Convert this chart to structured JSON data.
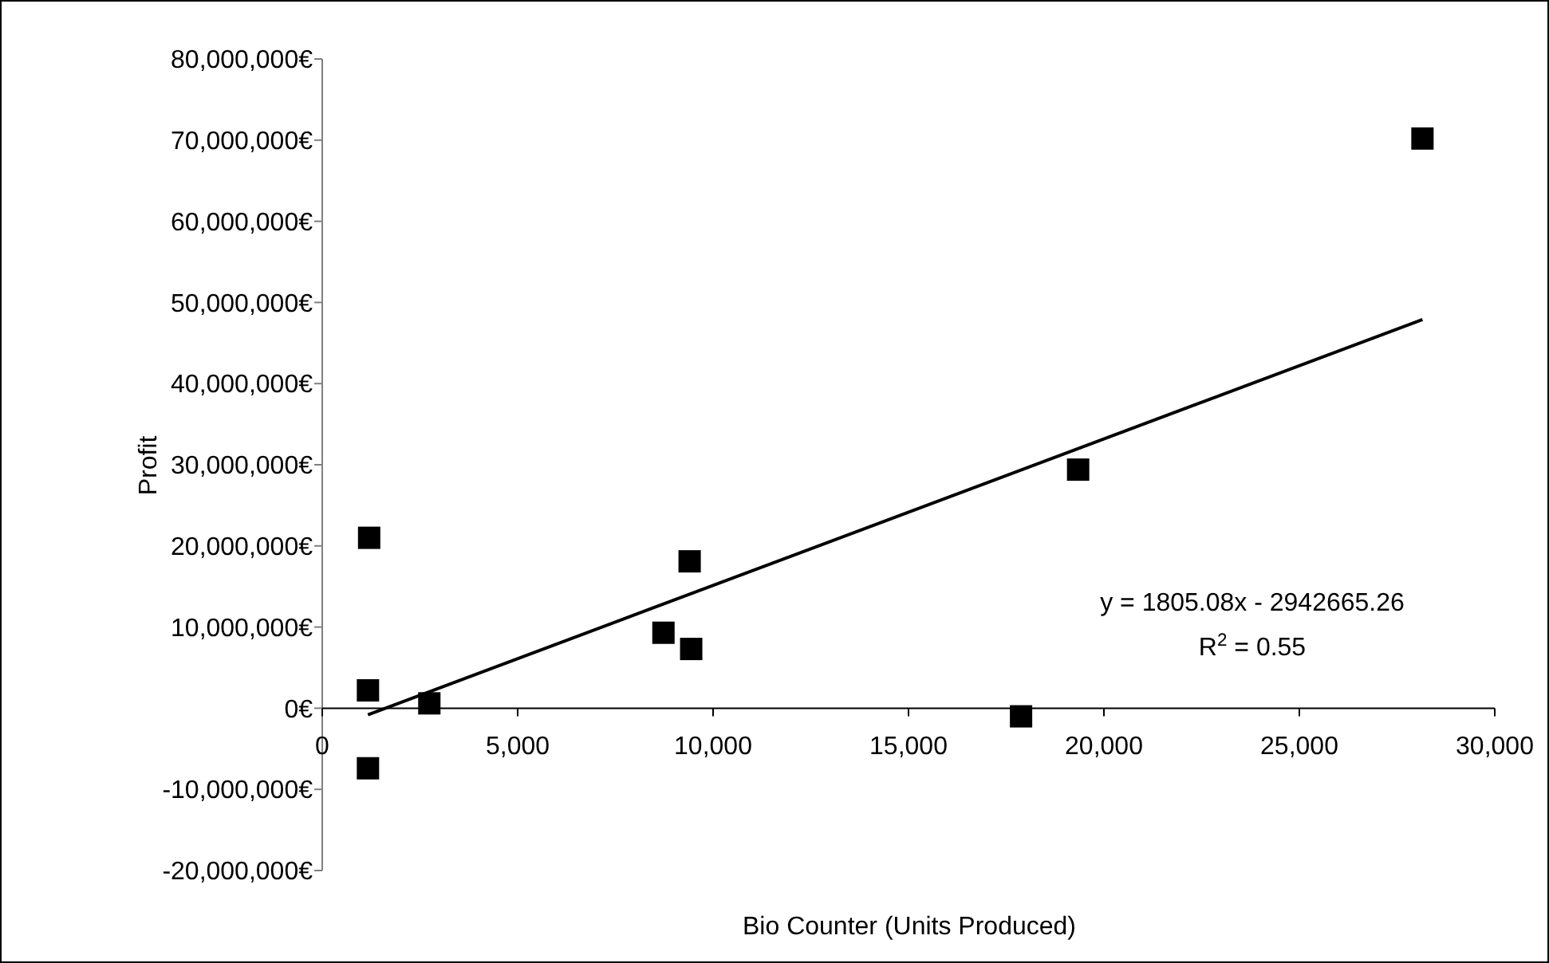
{
  "chart_data": {
    "type": "scatter",
    "xlabel": "Bio Counter (Units Produced)",
    "ylabel": "Profit",
    "xlim": [
      0,
      30000
    ],
    "ylim": [
      -20000000,
      80000000
    ],
    "xticks": [
      0,
      {
        "value": 5000,
        "label": "5,000"
      },
      {
        "value": 10000,
        "label": "10,000"
      },
      {
        "value": 15000,
        "label": "15,000"
      },
      {
        "value": 20000,
        "label": "20,000"
      },
      {
        "value": 25000,
        "label": "25,000"
      },
      {
        "value": 30000,
        "label": "30,000"
      }
    ],
    "yticks": [
      {
        "value": -20000000,
        "label": "-20,000,000€"
      },
      {
        "value": -10000000,
        "label": "-10,000,000€"
      },
      {
        "value": 0,
        "label": "0€"
      },
      {
        "value": 10000000,
        "label": "10,000,000€"
      },
      {
        "value": 20000000,
        "label": "20,000,000€"
      },
      {
        "value": 30000000,
        "label": "30,000,000€"
      },
      {
        "value": 40000000,
        "label": "40,000,000€"
      },
      {
        "value": 50000000,
        "label": "50,000,000€"
      },
      {
        "value": 60000000,
        "label": "60,000,000€"
      },
      {
        "value": 70000000,
        "label": "70,000,000€"
      },
      {
        "value": 80000000,
        "label": "80,000,000€"
      }
    ],
    "grid": false,
    "marker": "square",
    "series": [
      {
        "color": "#000000",
        "x": [
          1200,
          1170,
          1170,
          2740,
          8730,
          9400,
          9440,
          17880,
          19340,
          28150
        ],
        "values": [
          21000000,
          2200000,
          -7400000,
          600000,
          9300000,
          18100000,
          7300000,
          -1000000,
          29400000,
          70200000
        ]
      },
      {
        "type": "line",
        "color": "#000000",
        "marker": "none",
        "line_style": "solid",
        "x": [
          1170,
          28150
        ],
        "values": [
          -800000,
          47900000
        ]
      }
    ],
    "annotations": [
      "y = 1805.08x - 2942665.26",
      "R$^{2}$ = 0.55"
    ]
  }
}
